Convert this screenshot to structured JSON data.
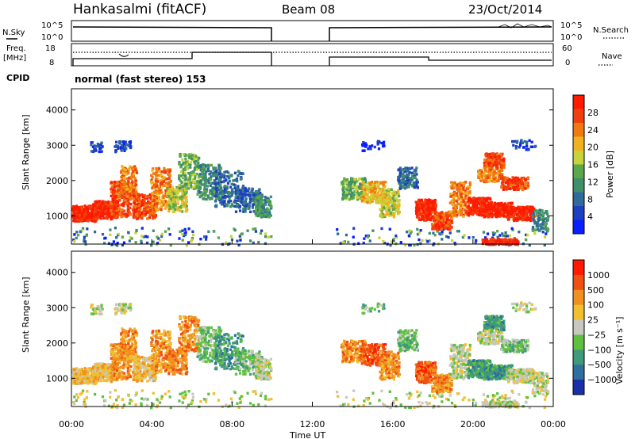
{
  "header": {
    "station": "Hankasalmi (fitACF)",
    "beam": "Beam 08",
    "date": "23/Oct/2014"
  },
  "status_panels": {
    "nsky_label": "N.Sky",
    "nsky_ticks": [
      "10^5",
      "10^0"
    ],
    "nsearch_label": "N.Search",
    "nsearch_ticks": [
      "10^5",
      "10^0"
    ],
    "freq_label_line1": "Freq.",
    "freq_label_line2": "[MHz]",
    "freq_ticks": [
      "18",
      "8"
    ],
    "nave_label": "Nave",
    "nave_ticks": [
      "60",
      "0"
    ],
    "cpid_label": "CPID",
    "mode_text": "normal (fast stereo) 153"
  },
  "colors": {
    "power": [
      "#0a1fff",
      "#1e3fbf",
      "#2f6b9a",
      "#3f8f6b",
      "#5aa84a",
      "#c8d23a",
      "#f0b020",
      "#f07a10",
      "#f04010",
      "#ff1a00"
    ],
    "velocity": [
      "#1a2fa8",
      "#2f6fa0",
      "#3f9a7a",
      "#5fc040",
      "#c8c8c0",
      "#f0c030",
      "#f09020",
      "#f05010",
      "#ff1a00"
    ]
  },
  "chart_data": [
    {
      "type": "heatmap",
      "title": "Power",
      "ylabel": "Slant Range [km]",
      "colorbar_label": "Power [dB]",
      "colorbar_ticks": [
        "28",
        "24",
        "20",
        "16",
        "12",
        "8",
        "4"
      ],
      "y_ticks": [
        "4000",
        "3000",
        "2000",
        "1000"
      ],
      "ylim": [
        200,
        4600
      ],
      "xlim_hours": [
        0,
        24
      ],
      "data_gap_hours": [
        10,
        13
      ],
      "dominant_power_db_by_hour": [
        {
          "hour": 1,
          "range_km": 1100,
          "power_db": 30
        },
        {
          "hour": 2,
          "range_km": 1700,
          "power_db": 28
        },
        {
          "hour": 4,
          "range_km": 1800,
          "power_db": 24
        },
        {
          "hour": 7,
          "range_km": 1800,
          "power_db": 12
        },
        {
          "hour": 16,
          "range_km": 1600,
          "power_db": 18
        },
        {
          "hour": 18,
          "range_km": 1100,
          "power_db": 28
        },
        {
          "hour": 21,
          "range_km": 1200,
          "power_db": 28
        },
        {
          "hour": 22,
          "range_km": 400,
          "power_db": 30
        }
      ]
    },
    {
      "type": "heatmap",
      "title": "Velocity",
      "ylabel": "Slant Range [km]",
      "colorbar_label": "Velocity [m s⁻¹]",
      "colorbar_ticks": [
        "1000",
        "500",
        "100",
        "25",
        "−25",
        "−100",
        "−500",
        "−1000"
      ],
      "y_ticks": [
        "4000",
        "3000",
        "2000",
        "1000"
      ],
      "x_ticks": [
        "00:00",
        "04:00",
        "08:00",
        "12:00",
        "16:00",
        "20:00",
        "00:00"
      ],
      "xlabel": "Time UT",
      "ylim": [
        200,
        4600
      ],
      "xlim_hours": [
        0,
        24
      ],
      "data_gap_hours": [
        10,
        13
      ]
    }
  ]
}
